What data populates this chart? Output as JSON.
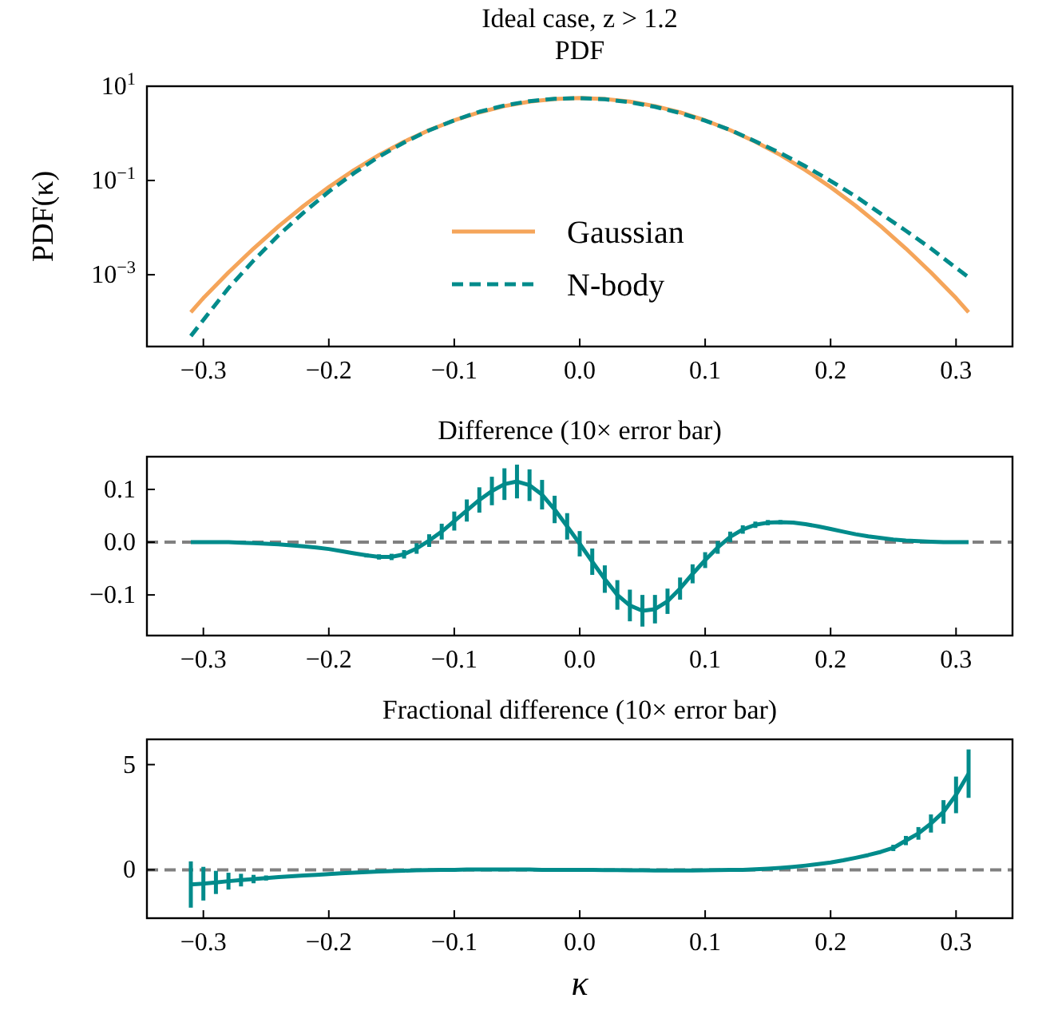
{
  "chart_data": [
    {
      "type": "line",
      "title": "Ideal case, z > 1.2",
      "subtitle": "PDF",
      "ylabel": "PDF(κ)",
      "log": "y",
      "legend": "bottom",
      "xlim": [
        -0.345,
        0.345
      ],
      "ylim": [
        3e-05,
        10
      ],
      "xticks": [
        {
          "value": -0.3,
          "label": "−0.3"
        },
        {
          "value": -0.2,
          "label": "−0.2"
        },
        {
          "value": -0.1,
          "label": "−0.1"
        },
        {
          "value": 0,
          "label": "0.0"
        },
        {
          "value": 0.1,
          "label": "0.1"
        },
        {
          "value": 0.2,
          "label": "0.2"
        },
        {
          "value": 0.3,
          "label": "0.3"
        }
      ],
      "yticks": [
        {
          "value": 0.001,
          "label": "10$^{−3}$"
        },
        {
          "value": 0.1,
          "label": "10$^{−1}$"
        },
        {
          "value": 10,
          "label": "10$^{1}$"
        }
      ],
      "x": [
        -0.31,
        -0.3,
        -0.28,
        -0.26,
        -0.24,
        -0.22,
        -0.2,
        -0.18,
        -0.16,
        -0.14,
        -0.12,
        -0.1,
        -0.08,
        -0.06,
        -0.04,
        -0.02,
        0,
        0.02,
        0.04,
        0.06,
        0.08,
        0.1,
        0.12,
        0.14,
        0.16,
        0.18,
        0.2,
        0.22,
        0.24,
        0.26,
        0.28,
        0.3,
        0.31
      ],
      "series": [
        {
          "name": "Gaussian",
          "color": "#f5a55a",
          "line_style": "solid",
          "values": [
            0.00016,
            0.00032,
            0.00112,
            0.0036,
            0.0107,
            0.0291,
            0.0723,
            0.166,
            0.347,
            0.666,
            1.17,
            1.89,
            2.79,
            3.79,
            4.71,
            5.36,
            5.6,
            5.36,
            4.71,
            3.79,
            2.79,
            1.89,
            1.17,
            0.666,
            0.347,
            0.166,
            0.0723,
            0.0291,
            0.0107,
            0.0036,
            0.00112,
            0.00032,
            0.00016
          ]
        },
        {
          "name": "N-body",
          "color": "#008b8b",
          "line_style": "dashed",
          "values": [
            5e-05,
            0.00011,
            0.00052,
            0.002,
            0.0069,
            0.021,
            0.058,
            0.143,
            0.32,
            0.64,
            1.16,
            1.89,
            2.87,
            3.9,
            4.82,
            5.42,
            5.6,
            5.29,
            4.59,
            3.66,
            2.7,
            1.86,
            1.18,
            0.68,
            0.38,
            0.2,
            0.098,
            0.046,
            0.0198,
            0.0086,
            0.0036,
            0.0014,
            0.00088
          ]
        }
      ]
    },
    {
      "type": "line",
      "title": "Difference (10× error bar)",
      "xlim": [
        -0.345,
        0.345
      ],
      "ylim": [
        -0.177,
        0.162
      ],
      "xticks": [
        {
          "value": -0.3,
          "label": "−0.3"
        },
        {
          "value": -0.2,
          "label": "−0.2"
        },
        {
          "value": -0.1,
          "label": "−0.1"
        },
        {
          "value": 0,
          "label": "0.0"
        },
        {
          "value": 0.1,
          "label": "0.1"
        },
        {
          "value": 0.2,
          "label": "0.2"
        },
        {
          "value": 0.3,
          "label": "0.3"
        }
      ],
      "yticks": [
        {
          "value": -0.1,
          "label": "−0.1"
        },
        {
          "value": 0,
          "label": "0.0"
        },
        {
          "value": 0.1,
          "label": "0.1"
        }
      ],
      "ref_lines": [
        {
          "axis": "y",
          "value": 0,
          "color": "#808080",
          "line_style": "dashed"
        }
      ],
      "x": [
        -0.31,
        -0.3,
        -0.29,
        -0.28,
        -0.27,
        -0.26,
        -0.25,
        -0.24,
        -0.23,
        -0.22,
        -0.21,
        -0.2,
        -0.19,
        -0.18,
        -0.17,
        -0.16,
        -0.15,
        -0.14,
        -0.13,
        -0.12,
        -0.11,
        -0.1,
        -0.09,
        -0.08,
        -0.07,
        -0.06,
        -0.05,
        -0.04,
        -0.03,
        -0.02,
        -0.01,
        0,
        0.01,
        0.02,
        0.03,
        0.04,
        0.05,
        0.06,
        0.07,
        0.08,
        0.09,
        0.1,
        0.11,
        0.12,
        0.13,
        0.14,
        0.15,
        0.16,
        0.17,
        0.18,
        0.19,
        0.2,
        0.21,
        0.22,
        0.23,
        0.24,
        0.25,
        0.26,
        0.27,
        0.28,
        0.29,
        0.3,
        0.31
      ],
      "series": [
        {
          "color": "#008b8b",
          "line_style": "solid",
          "values": [
            0,
            0,
            0,
            0,
            -0.001,
            -0.002,
            -0.003,
            -0.004,
            -0.006,
            -0.008,
            -0.01,
            -0.013,
            -0.017,
            -0.021,
            -0.025,
            -0.028,
            -0.028,
            -0.023,
            -0.012,
            0.003,
            0.02,
            0.04,
            0.06,
            0.08,
            0.097,
            0.11,
            0.115,
            0.108,
            0.09,
            0.062,
            0.03,
            -0.003,
            -0.037,
            -0.07,
            -0.1,
            -0.12,
            -0.13,
            -0.127,
            -0.112,
            -0.088,
            -0.06,
            -0.034,
            -0.01,
            0.01,
            0.024,
            0.033,
            0.037,
            0.038,
            0.037,
            0.034,
            0.03,
            0.025,
            0.02,
            0.015,
            0.011,
            0.008,
            0.005,
            0.003,
            0.002,
            0.001,
            0,
            0,
            0
          ],
          "errors": [
            null,
            null,
            null,
            null,
            null,
            null,
            null,
            null,
            null,
            null,
            null,
            null,
            null,
            0.003,
            0.004,
            0.005,
            0.006,
            0.008,
            0.01,
            0.012,
            0.015,
            0.018,
            0.021,
            0.024,
            0.027,
            0.03,
            0.032,
            0.03,
            0.028,
            0.026,
            0.025,
            0.024,
            0.025,
            0.026,
            0.028,
            0.03,
            0.03,
            0.027,
            0.024,
            0.021,
            0.018,
            0.015,
            0.012,
            0.01,
            0.008,
            0.006,
            0.005,
            0.004,
            0.003,
            0.002,
            0.002,
            null,
            null,
            null,
            null,
            null,
            null,
            null,
            null,
            null,
            null,
            null,
            null
          ]
        }
      ]
    },
    {
      "type": "line",
      "title": "Fractional difference (10× error bar)",
      "xlabel": "κ",
      "xlim": [
        -0.345,
        0.345
      ],
      "ylim": [
        -2.3,
        6.2
      ],
      "xticks": [
        {
          "value": -0.3,
          "label": "−0.3"
        },
        {
          "value": -0.2,
          "label": "−0.2"
        },
        {
          "value": -0.1,
          "label": "−0.1"
        },
        {
          "value": 0,
          "label": "0.0"
        },
        {
          "value": 0.1,
          "label": "0.1"
        },
        {
          "value": 0.2,
          "label": "0.2"
        },
        {
          "value": 0.3,
          "label": "0.3"
        }
      ],
      "yticks": [
        0,
        5
      ],
      "ref_lines": [
        {
          "axis": "y",
          "value": 0,
          "color": "#808080",
          "line_style": "dashed"
        }
      ],
      "x": [
        -0.31,
        -0.3,
        -0.29,
        -0.28,
        -0.27,
        -0.26,
        -0.25,
        -0.24,
        -0.23,
        -0.22,
        -0.21,
        -0.2,
        -0.19,
        -0.18,
        -0.17,
        -0.16,
        -0.15,
        -0.14,
        -0.13,
        -0.12,
        -0.11,
        -0.1,
        -0.09,
        -0.08,
        -0.07,
        -0.06,
        -0.05,
        -0.04,
        -0.03,
        -0.02,
        -0.01,
        0,
        0.01,
        0.02,
        0.03,
        0.04,
        0.05,
        0.06,
        0.07,
        0.08,
        0.09,
        0.1,
        0.11,
        0.12,
        0.13,
        0.14,
        0.15,
        0.16,
        0.17,
        0.18,
        0.19,
        0.2,
        0.21,
        0.22,
        0.23,
        0.24,
        0.25,
        0.26,
        0.27,
        0.28,
        0.29,
        0.3,
        0.31
      ],
      "series": [
        {
          "color": "#008b8b",
          "line_style": "solid",
          "values": [
            -0.7,
            -0.66,
            -0.6,
            -0.54,
            -0.49,
            -0.44,
            -0.39,
            -0.35,
            -0.31,
            -0.27,
            -0.24,
            -0.2,
            -0.17,
            -0.14,
            -0.11,
            -0.08,
            -0.06,
            -0.04,
            -0.02,
            -0.01,
            0,
            0,
            0.01,
            0.01,
            0.01,
            0.01,
            0.01,
            0.01,
            0,
            0,
            0,
            0,
            0,
            -0.01,
            -0.01,
            -0.02,
            -0.02,
            -0.03,
            -0.03,
            -0.03,
            -0.03,
            -0.02,
            -0.01,
            0,
            0,
            0.02,
            0.05,
            0.09,
            0.14,
            0.2,
            0.27,
            0.35,
            0.45,
            0.57,
            0.7,
            0.85,
            1.04,
            1.39,
            1.73,
            2.2,
            2.75,
            3.56,
            4.57
          ],
          "errors": [
            1.1,
            0.8,
            0.55,
            0.4,
            0.3,
            0.2,
            0.12,
            null,
            null,
            null,
            null,
            null,
            null,
            null,
            null,
            null,
            null,
            null,
            null,
            null,
            null,
            null,
            null,
            null,
            null,
            null,
            null,
            null,
            null,
            null,
            null,
            null,
            null,
            null,
            null,
            null,
            null,
            null,
            null,
            null,
            null,
            null,
            null,
            null,
            null,
            null,
            null,
            null,
            null,
            null,
            null,
            null,
            null,
            null,
            null,
            null,
            0.15,
            0.22,
            0.3,
            0.43,
            0.56,
            0.87,
            1.15
          ]
        }
      ]
    }
  ]
}
